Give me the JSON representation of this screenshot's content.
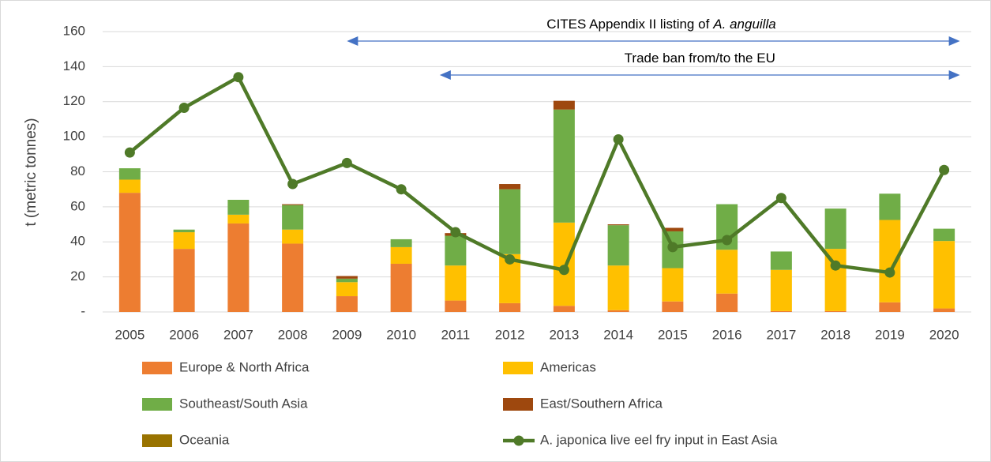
{
  "chart_data": {
    "type": "bar",
    "y_label": "t (metric tonnes)",
    "categories": [
      "2005",
      "2006",
      "2007",
      "2008",
      "2009",
      "2010",
      "2011",
      "2012",
      "2013",
      "2014",
      "2015",
      "2016",
      "2017",
      "2018",
      "2019",
      "2020"
    ],
    "ylim": [
      0,
      160
    ],
    "yticks": [
      {
        "value": 0,
        "label": "-"
      },
      20,
      40,
      60,
      80,
      100,
      120,
      140,
      160
    ],
    "grid": true,
    "stacked": true,
    "series": [
      {
        "name": "Europe & North Africa",
        "color": "#ed7d31",
        "values": [
          68,
          36,
          50.5,
          39,
          9,
          27.5,
          6.5,
          5,
          3.5,
          1,
          6,
          10.5,
          0.5,
          0.5,
          5.5,
          2
        ]
      },
      {
        "name": "Americas",
        "color": "#ffc000",
        "values": [
          7.5,
          9.5,
          5,
          8,
          8,
          9.5,
          20,
          28,
          47.5,
          25.5,
          19,
          25,
          23.5,
          35.5,
          47,
          38.5
        ]
      },
      {
        "name": "Southeast/South Asia",
        "color": "#70ad47",
        "values": [
          6.5,
          1.5,
          8.5,
          14,
          2,
          4.5,
          17,
          37,
          64.5,
          23,
          21,
          26,
          10.5,
          23,
          15,
          7
        ]
      },
      {
        "name": "East/Southern Africa",
        "color": "#9e480e",
        "values": [
          0,
          0,
          0,
          0.5,
          1.5,
          0,
          1.5,
          3,
          5,
          0.5,
          2,
          0,
          0,
          0,
          0,
          0
        ]
      },
      {
        "name": "Oceania",
        "color": "#997300",
        "values": [
          0,
          0,
          0,
          0,
          0,
          0,
          0,
          0,
          0,
          0,
          0,
          0,
          0,
          0,
          0,
          0
        ]
      },
      {
        "name": "A. japonica live eel fry input in East Asia",
        "type": "line",
        "color": "#4f7a28",
        "values": [
          91,
          116.5,
          134,
          73,
          85,
          70,
          45.5,
          30,
          24,
          98.5,
          37,
          41,
          65,
          26.5,
          22.5,
          81
        ]
      }
    ],
    "annotations": [
      {
        "text": "CITES Appendix II listing of",
        "emphasis": "A. anguilla",
        "from": 4,
        "to": 15
      },
      {
        "text": "Trade ban from/to the EU",
        "from": 6,
        "to": 15
      }
    ]
  }
}
